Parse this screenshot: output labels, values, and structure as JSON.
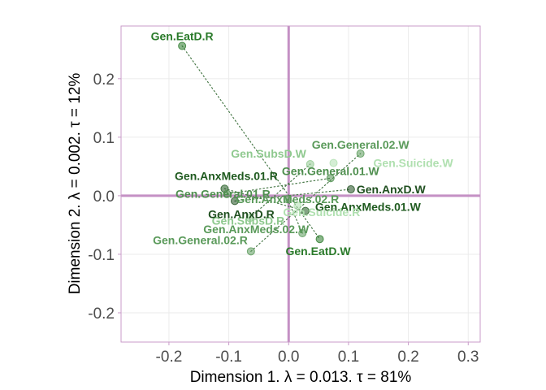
{
  "chart_data": {
    "type": "scatter",
    "title": "",
    "xlabel": "Dimension 1.   λ = 0.013.  τ = 81%",
    "ylabel": "Dimension 2.   λ = 0.002.  τ = 12%",
    "xlim": [
      -0.28,
      0.32
    ],
    "ylim": [
      -0.25,
      0.29
    ],
    "x_ticks": [
      -0.2,
      -0.1,
      0.0,
      0.1,
      0.2,
      0.3
    ],
    "x_tick_labels": [
      "-0.2",
      "-0.1",
      "0.0",
      "0.1",
      "0.2",
      "0.3"
    ],
    "y_ticks": [
      -0.2,
      -0.1,
      0.0,
      0.1,
      0.2
    ],
    "y_tick_labels": [
      "-0.2",
      "-0.1",
      "0.0",
      "0.1",
      "0.2"
    ],
    "grid": true,
    "legend": "none",
    "colors": {
      "panel_border": "#c99bc9",
      "origin_lines": "#c490c4",
      "grid": "#ffffff",
      "ticks": "#c99bc9",
      "connector": "#4a7a4a"
    },
    "pairs": [
      [
        "Gen.EatD.R",
        "Gen.EatD.W"
      ],
      [
        "Gen.General.02.R",
        "Gen.General.02.W"
      ],
      [
        "Gen.SubsD.R",
        "Gen.SubsD.W"
      ],
      [
        "Gen.AnxMeds.01.R",
        "Gen.AnxMeds.01.W"
      ],
      [
        "Gen.General.01.R",
        "Gen.General.01.W"
      ],
      [
        "Gen.AnxD.R",
        "Gen.AnxD.W"
      ],
      [
        "Gen.AnxMeds.02.R",
        "Gen.AnxMeds.02.W"
      ]
    ],
    "points": [
      {
        "label": "Gen.EatD.R",
        "x": -0.178,
        "y": 0.256,
        "color": "#2a7a2a",
        "anchor": "middle"
      },
      {
        "label": "Gen.General.02.R",
        "x": -0.063,
        "y": -0.095,
        "color": "#5a9a5a",
        "anchor": "end"
      },
      {
        "label": "Gen.SubsD.R",
        "x": -0.065,
        "y": -0.038,
        "color": "#8fc98f",
        "anchor": "middle"
      },
      {
        "label": "Gen.AnxMeds.01.R",
        "x": -0.107,
        "y": 0.012,
        "color": "#1f5a1f",
        "anchor": "middle"
      },
      {
        "label": "Gen.General.01.R",
        "x": -0.103,
        "y": 0.003,
        "color": "#4f8f4f",
        "anchor": "middle"
      },
      {
        "label": "Gen.AnxD.R",
        "x": -0.09,
        "y": -0.009,
        "color": "#1f4f1f",
        "anchor": "middle"
      },
      {
        "label": "Gen.AnxMeds.02.R",
        "x": -0.002,
        "y": -0.006,
        "color": "#5a9a5a",
        "anchor": "middle"
      },
      {
        "label": "Gen.EatD.W",
        "x": 0.052,
        "y": -0.074,
        "color": "#2a7a2a",
        "anchor": "middle"
      },
      {
        "label": "Gen.General.02.W",
        "x": 0.12,
        "y": 0.072,
        "color": "#5a9a5a",
        "anchor": "middle"
      },
      {
        "label": "Gen.SubsD.W",
        "x": 0.036,
        "y": 0.054,
        "color": "#8fc98f",
        "anchor": "end"
      },
      {
        "label": "Gen.AnxMeds.01.W",
        "x": 0.028,
        "y": -0.026,
        "color": "#1f5a1f",
        "anchor": "start"
      },
      {
        "label": "Gen.General.01.W",
        "x": 0.07,
        "y": 0.03,
        "color": "#4f8f4f",
        "anchor": "middle"
      },
      {
        "label": "Gen.AnxD.W",
        "x": 0.104,
        "y": 0.011,
        "color": "#1f4f1f",
        "anchor": "start"
      },
      {
        "label": "Gen.AnxMeds.02.W",
        "x": 0.023,
        "y": -0.064,
        "color": "#5a9a5a",
        "anchor": "end"
      },
      {
        "label": "Gen.Suicide.W",
        "x": 0.075,
        "y": 0.056,
        "color": "#b0e0b0",
        "anchor": "start"
      },
      {
        "label": "Gen.Suicide.R",
        "x": 0.015,
        "y": -0.017,
        "color": "#b0e0b0",
        "anchor": "start"
      }
    ]
  }
}
